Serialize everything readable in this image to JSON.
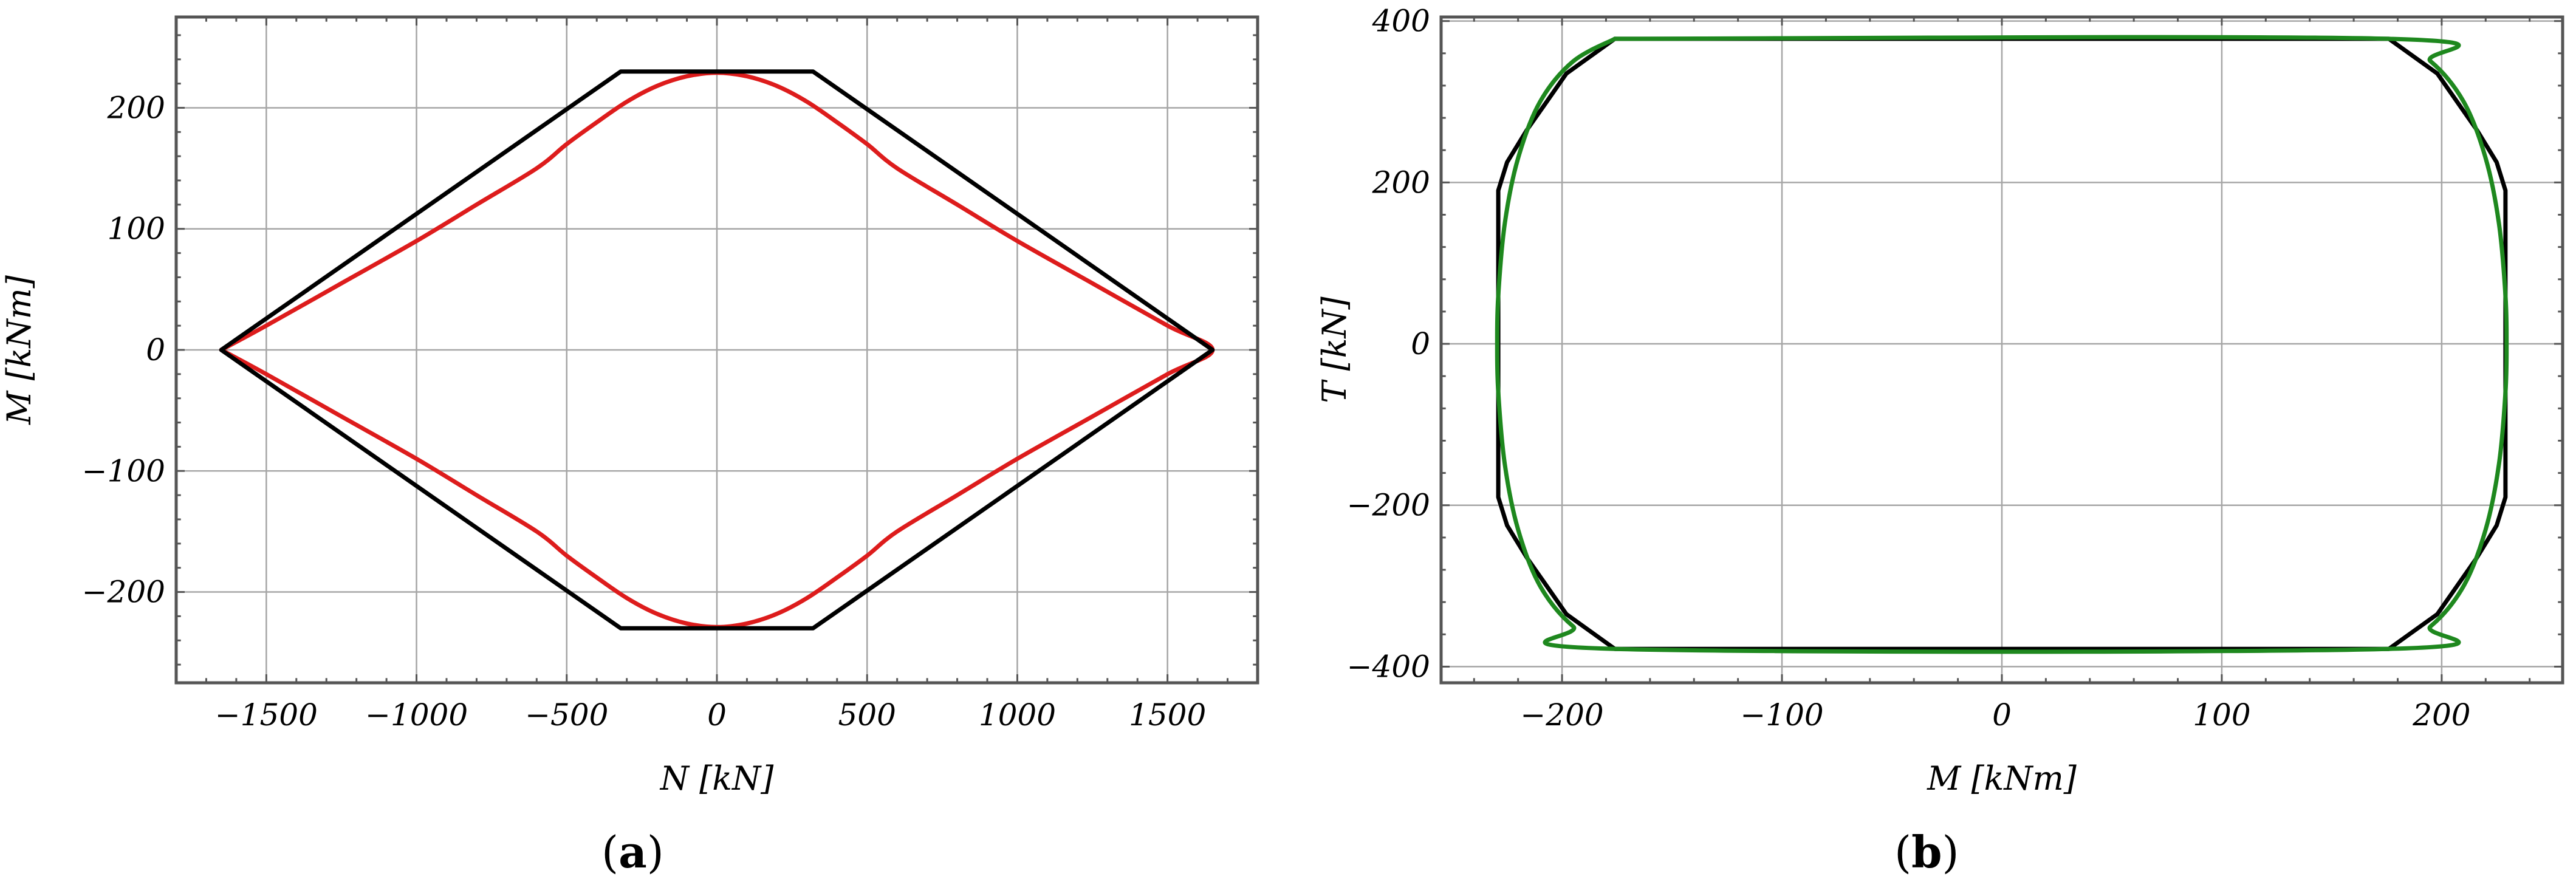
{
  "colors": {
    "frame": "#555555",
    "grid": "#a6a6a6",
    "plot_background": "#ffffff",
    "boundary_polygon": "#000000",
    "curve_a": "#dd1c1c",
    "curve_b": "#1e881e"
  },
  "panels": [
    {
      "id": "a",
      "open": "(",
      "letter": "a",
      "close": ")"
    },
    {
      "id": "b",
      "open": "(",
      "letter": "b",
      "close": ")"
    }
  ],
  "chart_data": [
    {
      "type": "line",
      "panel": "(a)",
      "title": "",
      "xlabel": "N [kN]",
      "ylabel": "M [kNm]",
      "xlim": [
        -1800,
        1800
      ],
      "ylim": [
        -275,
        275
      ],
      "xticks": [
        -1500,
        -1000,
        -500,
        0,
        500,
        1000,
        1500
      ],
      "yticks": [
        -200,
        -100,
        0,
        100,
        200
      ],
      "xtick_labels": [
        "−1500",
        "−1000",
        "−500",
        "0",
        "500",
        "1000",
        "1500"
      ],
      "ytick_labels": [
        "−200",
        "−100",
        "0",
        "100",
        "200"
      ],
      "grid": true,
      "series": [
        {
          "color": "#dd1c1c",
          "style": "smooth",
          "x": [
            -1650,
            -1500,
            -1250,
            -1000,
            -800,
            -600,
            -500,
            -400,
            -300,
            -200,
            -100,
            0,
            100,
            200,
            300,
            400,
            500,
            600,
            800,
            1000,
            1250,
            1500,
            1650,
            1500,
            1250,
            1000,
            800,
            600,
            500,
            400,
            300,
            200,
            100,
            0,
            -100,
            -200,
            -300,
            -400,
            -500,
            -600,
            -800,
            -1000,
            -1250,
            -1500,
            -1650
          ],
          "y": [
            0,
            20,
            55,
            90,
            120,
            150,
            170,
            188,
            205,
            218,
            226,
            229,
            226,
            218,
            205,
            188,
            170,
            150,
            120,
            90,
            55,
            20,
            0,
            -20,
            -55,
            -90,
            -120,
            -150,
            -170,
            -188,
            -205,
            -218,
            -226,
            -229,
            -226,
            -218,
            -205,
            -188,
            -170,
            -150,
            -120,
            -90,
            -55,
            -20,
            0
          ]
        },
        {
          "color": "#000000",
          "style": "polyline",
          "x": [
            -1650,
            -320,
            320,
            1650,
            320,
            -320,
            -1650
          ],
          "y": [
            0,
            230,
            230,
            0,
            -230,
            -230,
            0
          ]
        }
      ]
    },
    {
      "type": "line",
      "panel": "(b)",
      "title": "",
      "xlabel": "M [kNm]",
      "ylabel": "T [kN]",
      "xlim": [
        -255,
        255
      ],
      "ylim": [
        -420,
        405
      ],
      "xticks": [
        -200,
        -100,
        0,
        100,
        200
      ],
      "yticks": [
        -400,
        -200,
        0,
        200,
        400
      ],
      "xtick_labels": [
        "−200",
        "−100",
        "0",
        "100",
        "200"
      ],
      "ytick_labels": [
        "−400",
        "−200",
        "0",
        "200",
        "400"
      ],
      "grid": true,
      "series": [
        {
          "color": "#000000",
          "style": "polyline",
          "x": [
            -176,
            176,
            198,
            216,
            225,
            229,
            229,
            225,
            216,
            198,
            176,
            -176,
            -198,
            -216,
            -225,
            -229,
            -229,
            -225,
            -216,
            -198,
            -176
          ],
          "y": [
            378,
            378,
            335,
            265,
            225,
            190,
            -190,
            -225,
            -265,
            -335,
            -378,
            -378,
            -335,
            -265,
            -225,
            -190,
            190,
            225,
            265,
            335,
            378
          ]
        },
        {
          "color": "#1e881e",
          "style": "smooth",
          "x": [
            -176,
            176,
            195,
            210,
            220,
            226,
            229,
            229.5,
            229,
            226,
            220,
            210,
            195,
            176,
            -176,
            -195,
            -210,
            -220,
            -226,
            -229,
            -229.5,
            -229,
            -226,
            -220,
            -210,
            -195,
            -176
          ],
          "y": [
            378,
            378,
            350,
            300,
            230,
            150,
            60,
            0,
            -60,
            -150,
            -230,
            -300,
            -350,
            -378,
            -378,
            -350,
            -300,
            -230,
            -150,
            -60,
            0,
            60,
            150,
            230,
            300,
            350,
            378
          ]
        }
      ]
    }
  ]
}
